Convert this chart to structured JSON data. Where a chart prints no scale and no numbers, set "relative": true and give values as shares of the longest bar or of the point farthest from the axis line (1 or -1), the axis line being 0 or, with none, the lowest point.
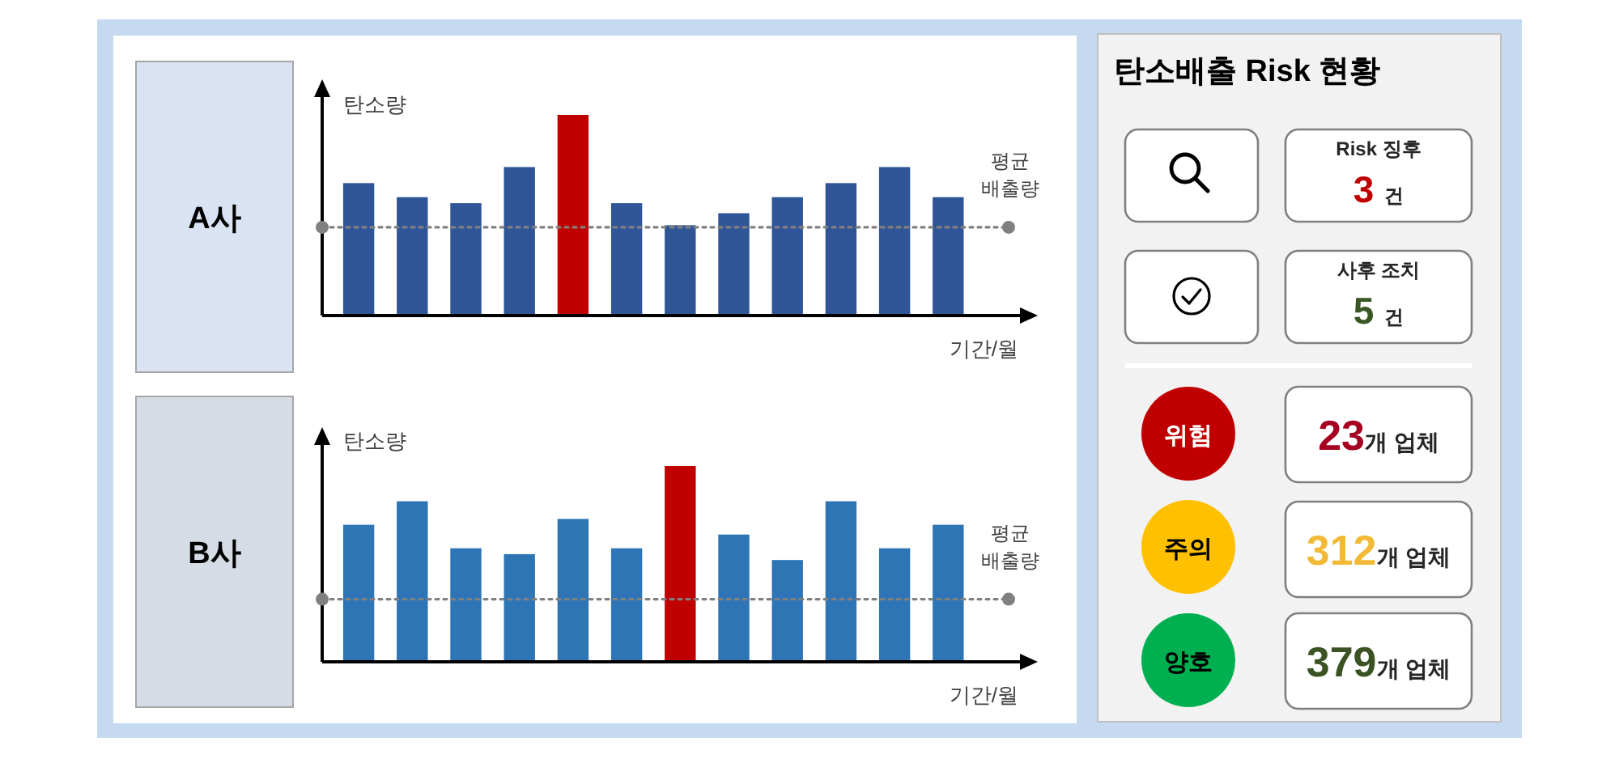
{
  "chart_data": [
    {
      "type": "bar",
      "title": "A사",
      "ylabel": "탄소량",
      "xlabel": "기간/월",
      "relative": true,
      "categories": [
        null,
        null,
        null,
        null,
        null,
        null,
        null,
        null,
        null,
        null,
        null,
        null
      ],
      "values": [
        0.66,
        0.59,
        0.56,
        0.74,
        1,
        0.56,
        0.45,
        0.51,
        0.59,
        0.66,
        0.74,
        0.59
      ],
      "colors": [
        "#2f5597",
        "#2f5597",
        "#2f5597",
        "#2f5597",
        "#c00000",
        "#2f5597",
        "#2f5597",
        "#2f5597",
        "#2f5597",
        "#2f5597",
        "#2f5597",
        "#2f5597"
      ],
      "ref_lines": [
        {
          "axis": "y",
          "value": 0.44,
          "label": "평균 배출량",
          "color": "#808080",
          "line_style": "dotted"
        }
      ]
    },
    {
      "type": "bar",
      "title": "B사",
      "ylabel": "탄소량",
      "xlabel": "기간/월",
      "relative": true,
      "categories": [
        null,
        null,
        null,
        null,
        null,
        null,
        null,
        null,
        null,
        null,
        null,
        null
      ],
      "values": [
        0.7,
        0.82,
        0.58,
        0.55,
        0.73,
        0.58,
        1,
        0.65,
        0.52,
        0.82,
        0.58,
        0.7
      ],
      "colors": [
        "#2e75b6",
        "#2e75b6",
        "#2e75b6",
        "#2e75b6",
        "#2e75b6",
        "#2e75b6",
        "#c00000",
        "#2e75b6",
        "#2e75b6",
        "#2e75b6",
        "#2e75b6",
        "#2e75b6"
      ],
      "ref_lines": [
        {
          "axis": "y",
          "value": 0.32,
          "label": "평균 배출량",
          "color": "#808080",
          "line_style": "dotted"
        }
      ]
    },
    {
      "type": "other",
      "title": "탄소배출 Risk 현황",
      "annotations": [
        "Risk 징후",
        "3 건",
        "사후 조치",
        "5 건",
        "위험",
        "23개 업체",
        "주의",
        "312개 업체",
        "양호",
        "379개 업체"
      ]
    }
  ]
}
